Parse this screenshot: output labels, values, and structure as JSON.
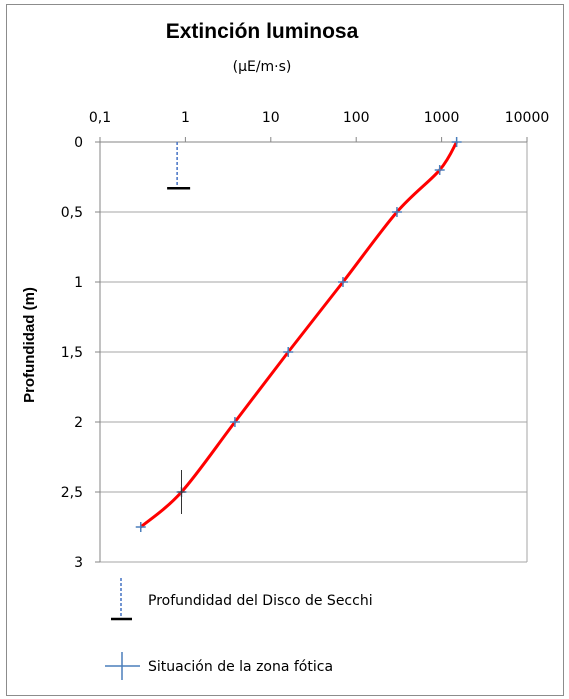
{
  "chart_data": {
    "type": "line",
    "title": "Extinción luminosa",
    "subtitle": "(µE/m·s)",
    "xlabel": "(µE/m·s)",
    "ylabel": "Profundidad (m)",
    "x_scale": "log",
    "xlim": [
      0.1,
      10000
    ],
    "ylim": [
      0,
      3
    ],
    "y_inverted": true,
    "x_axis_position": "top",
    "x_ticks": [
      "0,1",
      "1",
      "10",
      "100",
      "1000",
      "10000"
    ],
    "x_tick_values": [
      0.1,
      1,
      10,
      100,
      1000,
      10000
    ],
    "y_ticks": [
      "0",
      "0,5",
      "1",
      "1,5",
      "2",
      "2,5",
      "3"
    ],
    "y_tick_values": [
      0,
      0.5,
      1,
      1.5,
      2,
      2.5,
      3
    ],
    "grid": "horizontal",
    "series": [
      {
        "name": "Extinción luminosa",
        "color": "#ff0000",
        "x": [
          1500,
          950,
          300,
          70,
          16,
          3.8,
          0.9,
          0.3
        ],
        "y": [
          0,
          0.2,
          0.5,
          1,
          1.5,
          2,
          2.5,
          2.75
        ]
      }
    ],
    "secchi_disk": {
      "x": 0.8,
      "depth": 0.33,
      "color": "#4472c4"
    },
    "photic_zone": {
      "x": 0.9,
      "depth": 2.5
    },
    "legend": {
      "position": "bottom",
      "items": [
        {
          "label": "Profundidad del Disco de Secchi",
          "symbol": "secchi"
        },
        {
          "label": "Situación de la zona fótica",
          "symbol": "cross"
        }
      ]
    }
  }
}
